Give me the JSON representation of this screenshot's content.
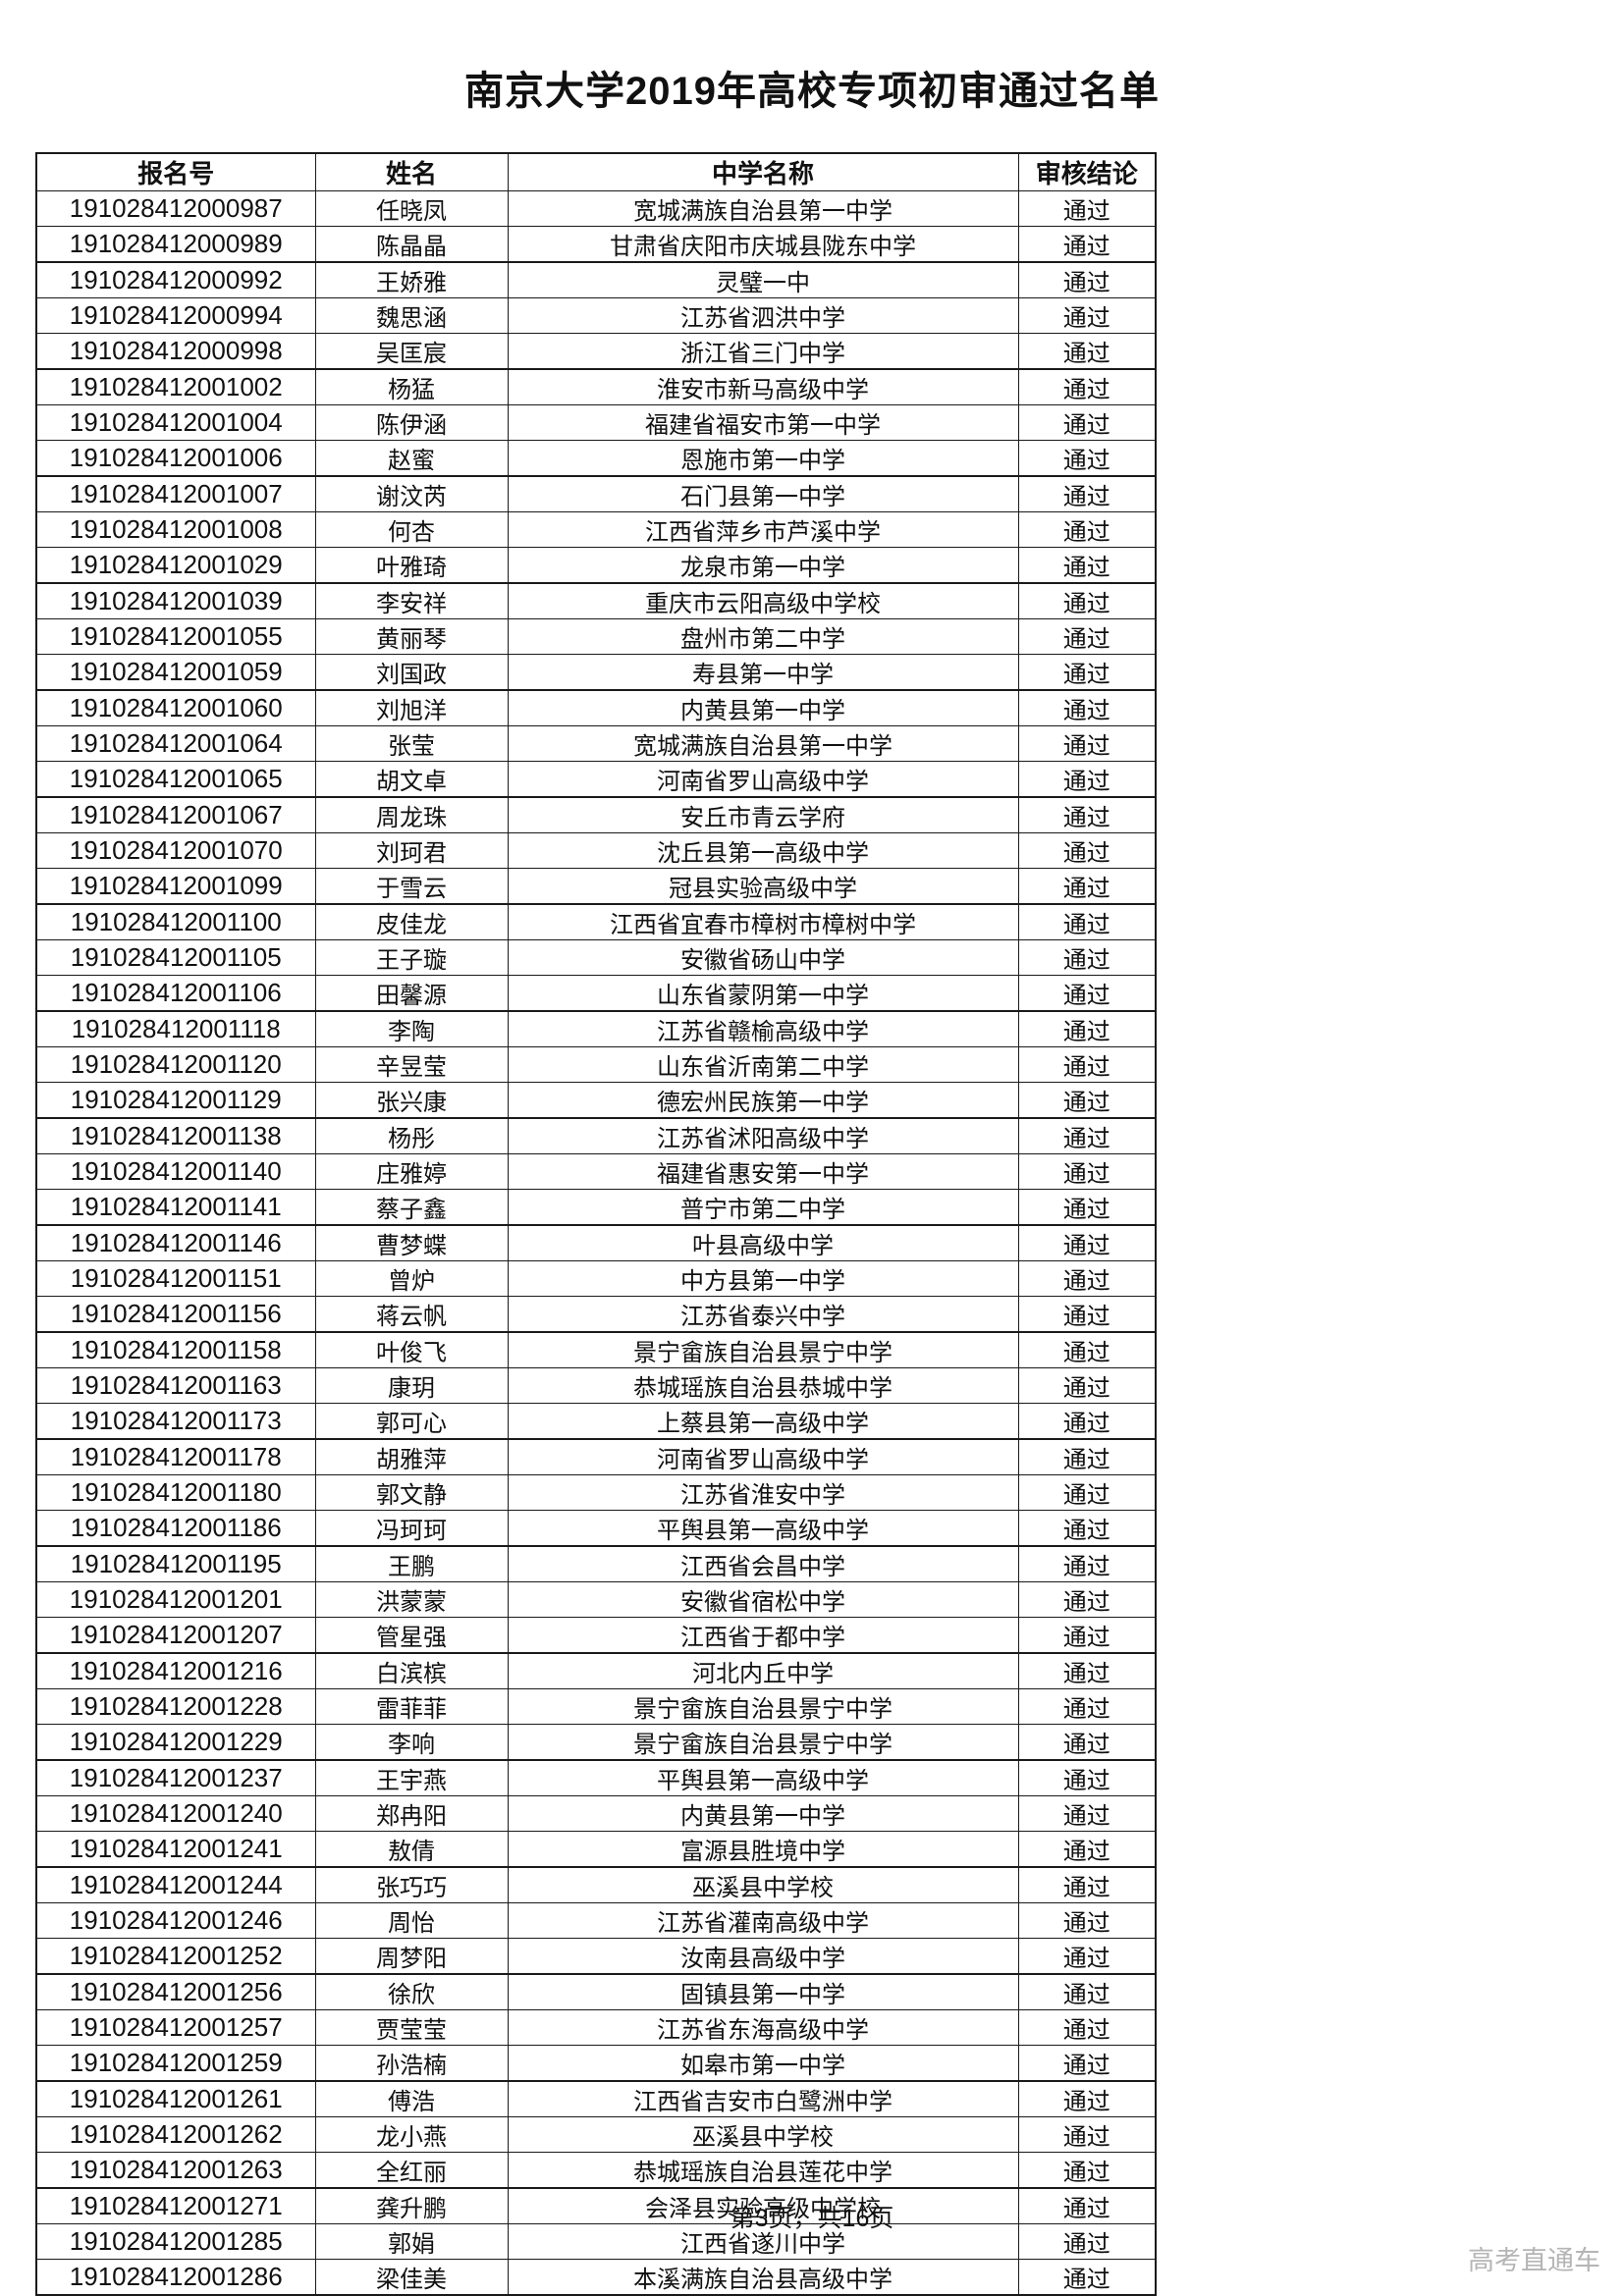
{
  "page": {
    "title": "南京大学2019年高校专项初审通过名单",
    "footer": "第3页，共16页",
    "watermark": "高考直通车"
  },
  "table": {
    "columns": [
      "报名号",
      "姓名",
      "中学名称",
      "审核结论"
    ],
    "rows": [
      {
        "id": "191028412000987",
        "name": "任晓凤",
        "school": "宽城满族自治县第一中学",
        "result": "通过"
      },
      {
        "id": "191028412000989",
        "name": "陈晶晶",
        "school": "甘肃省庆阳市庆城县陇东中学",
        "result": "通过"
      },
      {
        "id": "191028412000992",
        "name": "王娇雅",
        "school": "灵璧一中",
        "result": "通过"
      },
      {
        "id": "191028412000994",
        "name": "魏思涵",
        "school": "江苏省泗洪中学",
        "result": "通过"
      },
      {
        "id": "191028412000998",
        "name": "吴匡宸",
        "school": "浙江省三门中学",
        "result": "通过"
      },
      {
        "id": "191028412001002",
        "name": "杨猛",
        "school": "淮安市新马高级中学",
        "result": "通过"
      },
      {
        "id": "191028412001004",
        "name": "陈伊涵",
        "school": "福建省福安市第一中学",
        "result": "通过"
      },
      {
        "id": "191028412001006",
        "name": "赵蜜",
        "school": "恩施市第一中学",
        "result": "通过"
      },
      {
        "id": "191028412001007",
        "name": "谢汶芮",
        "school": "石门县第一中学",
        "result": "通过"
      },
      {
        "id": "191028412001008",
        "name": "何杏",
        "school": "江西省萍乡市芦溪中学",
        "result": "通过"
      },
      {
        "id": "191028412001029",
        "name": "叶雅琦",
        "school": "龙泉市第一中学",
        "result": "通过"
      },
      {
        "id": "191028412001039",
        "name": "李安祥",
        "school": "重庆市云阳高级中学校",
        "result": "通过"
      },
      {
        "id": "191028412001055",
        "name": "黄丽琴",
        "school": "盘州市第二中学",
        "result": "通过"
      },
      {
        "id": "191028412001059",
        "name": "刘国政",
        "school": "寿县第一中学",
        "result": "通过"
      },
      {
        "id": "191028412001060",
        "name": "刘旭洋",
        "school": "内黄县第一中学",
        "result": "通过"
      },
      {
        "id": "191028412001064",
        "name": "张莹",
        "school": "宽城满族自治县第一中学",
        "result": "通过"
      },
      {
        "id": "191028412001065",
        "name": "胡文卓",
        "school": "河南省罗山高级中学",
        "result": "通过"
      },
      {
        "id": "191028412001067",
        "name": "周龙珠",
        "school": "安丘市青云学府",
        "result": "通过"
      },
      {
        "id": "191028412001070",
        "name": "刘珂君",
        "school": "沈丘县第一高级中学",
        "result": "通过"
      },
      {
        "id": "191028412001099",
        "name": "于雪云",
        "school": "冠县实验高级中学",
        "result": "通过"
      },
      {
        "id": "191028412001100",
        "name": "皮佳龙",
        "school": "江西省宜春市樟树市樟树中学",
        "result": "通过"
      },
      {
        "id": "191028412001105",
        "name": "王子璇",
        "school": "安徽省砀山中学",
        "result": "通过"
      },
      {
        "id": "191028412001106",
        "name": "田馨源",
        "school": "山东省蒙阴第一中学",
        "result": "通过"
      },
      {
        "id": "191028412001118",
        "name": "李陶",
        "school": "江苏省赣榆高级中学",
        "result": "通过"
      },
      {
        "id": "191028412001120",
        "name": "辛昱莹",
        "school": "山东省沂南第二中学",
        "result": "通过"
      },
      {
        "id": "191028412001129",
        "name": "张兴康",
        "school": "德宏州民族第一中学",
        "result": "通过"
      },
      {
        "id": "191028412001138",
        "name": "杨彤",
        "school": "江苏省沭阳高级中学",
        "result": "通过"
      },
      {
        "id": "191028412001140",
        "name": "庄雅婷",
        "school": "福建省惠安第一中学",
        "result": "通过"
      },
      {
        "id": "191028412001141",
        "name": "蔡子鑫",
        "school": "普宁市第二中学",
        "result": "通过"
      },
      {
        "id": "191028412001146",
        "name": "曹梦蝶",
        "school": "叶县高级中学",
        "result": "通过"
      },
      {
        "id": "191028412001151",
        "name": "曾炉",
        "school": "中方县第一中学",
        "result": "通过"
      },
      {
        "id": "191028412001156",
        "name": "蒋云帆",
        "school": "江苏省泰兴中学",
        "result": "通过"
      },
      {
        "id": "191028412001158",
        "name": "叶俊飞",
        "school": "景宁畲族自治县景宁中学",
        "result": "通过"
      },
      {
        "id": "191028412001163",
        "name": "康玥",
        "school": "恭城瑶族自治县恭城中学",
        "result": "通过"
      },
      {
        "id": "191028412001173",
        "name": "郭可心",
        "school": "上蔡县第一高级中学",
        "result": "通过"
      },
      {
        "id": "191028412001178",
        "name": "胡雅萍",
        "school": "河南省罗山高级中学",
        "result": "通过"
      },
      {
        "id": "191028412001180",
        "name": "郭文静",
        "school": "江苏省淮安中学",
        "result": "通过"
      },
      {
        "id": "191028412001186",
        "name": "冯珂珂",
        "school": "平舆县第一高级中学",
        "result": "通过"
      },
      {
        "id": "191028412001195",
        "name": "王鹏",
        "school": "江西省会昌中学",
        "result": "通过"
      },
      {
        "id": "191028412001201",
        "name": "洪蒙蒙",
        "school": "安徽省宿松中学",
        "result": "通过"
      },
      {
        "id": "191028412001207",
        "name": "管星强",
        "school": "江西省于都中学",
        "result": "通过"
      },
      {
        "id": "191028412001216",
        "name": "白滨槟",
        "school": "河北内丘中学",
        "result": "通过"
      },
      {
        "id": "191028412001228",
        "name": "雷菲菲",
        "school": "景宁畲族自治县景宁中学",
        "result": "通过"
      },
      {
        "id": "191028412001229",
        "name": "李响",
        "school": "景宁畲族自治县景宁中学",
        "result": "通过"
      },
      {
        "id": "191028412001237",
        "name": "王宇燕",
        "school": "平舆县第一高级中学",
        "result": "通过"
      },
      {
        "id": "191028412001240",
        "name": "郑冉阳",
        "school": "内黄县第一中学",
        "result": "通过"
      },
      {
        "id": "191028412001241",
        "name": "敖倩",
        "school": "富源县胜境中学",
        "result": "通过"
      },
      {
        "id": "191028412001244",
        "name": "张巧巧",
        "school": "巫溪县中学校",
        "result": "通过"
      },
      {
        "id": "191028412001246",
        "name": "周怡",
        "school": "江苏省灌南高级中学",
        "result": "通过"
      },
      {
        "id": "191028412001252",
        "name": "周梦阳",
        "school": "汝南县高级中学",
        "result": "通过"
      },
      {
        "id": "191028412001256",
        "name": "徐欣",
        "school": "固镇县第一中学",
        "result": "通过"
      },
      {
        "id": "191028412001257",
        "name": "贾莹莹",
        "school": "江苏省东海高级中学",
        "result": "通过"
      },
      {
        "id": "191028412001259",
        "name": "孙浩楠",
        "school": "如皋市第一中学",
        "result": "通过"
      },
      {
        "id": "191028412001261",
        "name": "傅浩",
        "school": "江西省吉安市白鹭洲中学",
        "result": "通过"
      },
      {
        "id": "191028412001262",
        "name": "龙小燕",
        "school": "巫溪县中学校",
        "result": "通过"
      },
      {
        "id": "191028412001263",
        "name": "全红丽",
        "school": "恭城瑶族自治县莲花中学",
        "result": "通过"
      },
      {
        "id": "191028412001271",
        "name": "龚升鹏",
        "school": "会泽县实验高级中学校",
        "result": "通过"
      },
      {
        "id": "191028412001285",
        "name": "郭娟",
        "school": "江西省遂川中学",
        "result": "通过"
      },
      {
        "id": "191028412001286",
        "name": "梁佳美",
        "school": "本溪满族自治县高级中学",
        "result": "通过"
      }
    ]
  }
}
